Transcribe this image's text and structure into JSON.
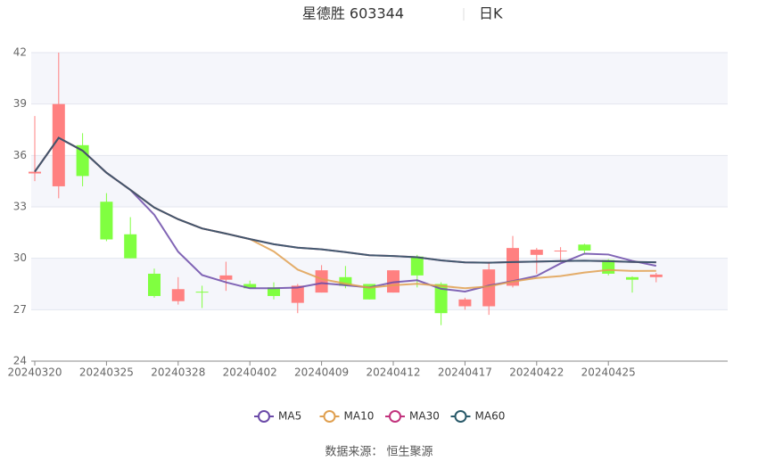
{
  "chart_data": {
    "type": "candlestick",
    "title": "星德胜 603344",
    "subtitle": "日K",
    "source": "数据来源： 恒生聚源",
    "categories": [
      "20240320",
      null,
      null,
      "20240325",
      null,
      null,
      "20240328",
      null,
      null,
      "20240402",
      null,
      null,
      "20240409",
      null,
      null,
      "20240412",
      null,
      null,
      "20240417",
      null,
      null,
      "20240422",
      null,
      null,
      "20240425",
      null,
      null
    ],
    "open": [
      34.95,
      34.2,
      36.6,
      33.3,
      31.4,
      29.1,
      27.5,
      28.05,
      28.75,
      28.5,
      28.3,
      27.4,
      28.0,
      28.9,
      28.5,
      28.0,
      30.1,
      28.5,
      27.2,
      27.2,
      28.4,
      30.2,
      30.4,
      30.8,
      29.9,
      28.9,
      28.9
    ],
    "close": [
      35.05,
      39.0,
      34.8,
      31.1,
      30.0,
      27.8,
      28.2,
      28.0,
      29.0,
      28.25,
      27.8,
      28.4,
      29.3,
      28.4,
      27.6,
      29.3,
      29.0,
      26.8,
      27.6,
      29.35,
      30.6,
      30.5,
      30.45,
      30.45,
      29.1,
      28.75,
      29.05
    ],
    "high": [
      38.3,
      42.0,
      37.3,
      33.8,
      32.4,
      29.4,
      28.9,
      28.4,
      29.8,
      28.7,
      28.6,
      28.5,
      29.6,
      29.55,
      28.5,
      29.3,
      30.2,
      28.6,
      27.7,
      29.8,
      31.3,
      30.6,
      30.65,
      30.85,
      29.95,
      28.95,
      29.15
    ],
    "low": [
      34.5,
      33.5,
      34.2,
      31.0,
      30.0,
      27.7,
      27.3,
      27.1,
      28.1,
      28.25,
      27.6,
      26.8,
      28.0,
      28.25,
      27.6,
      28.0,
      28.3,
      26.1,
      27.0,
      26.7,
      28.3,
      29.1,
      29.8,
      30.3,
      29.0,
      28.0,
      28.6
    ],
    "up_color": "#ff8080",
    "down_color": "#80ff40",
    "series": [
      {
        "name": "MA5",
        "color": "#6b4aa8",
        "values": [
          35.05,
          37.03,
          36.28,
          34.99,
          33.99,
          32.54,
          30.38,
          29.02,
          28.6,
          28.25,
          28.25,
          28.29,
          28.55,
          28.43,
          28.3,
          28.6,
          28.72,
          28.22,
          28.06,
          28.41,
          28.67,
          28.97,
          29.7,
          30.27,
          30.22,
          29.85,
          29.56
        ]
      },
      {
        "name": "MA10",
        "color": "#e0a050",
        "values": [
          35.05,
          37.03,
          36.28,
          34.99,
          33.99,
          32.96,
          32.28,
          31.74,
          31.44,
          31.12,
          30.4,
          29.34,
          28.79,
          28.52,
          28.28,
          28.43,
          28.51,
          28.39,
          28.25,
          28.36,
          28.64,
          28.85,
          28.96,
          29.17,
          29.32,
          29.26,
          29.27
        ]
      },
      {
        "name": "MA30",
        "color": "#c2337d",
        "values": [
          35.05,
          37.03,
          36.28,
          34.99,
          33.99,
          32.96,
          32.28,
          31.74,
          31.44,
          31.12,
          30.82,
          30.62,
          30.52,
          30.36,
          30.18,
          30.13,
          30.06,
          29.88,
          29.76,
          29.74,
          29.78,
          29.81,
          29.84,
          29.86,
          29.83,
          29.79,
          29.77
        ]
      },
      {
        "name": "MA60",
        "color": "#2a5a6a",
        "values": [
          35.05,
          37.03,
          36.28,
          34.99,
          33.99,
          32.96,
          32.28,
          31.74,
          31.44,
          31.12,
          30.82,
          30.62,
          30.52,
          30.36,
          30.18,
          30.13,
          30.06,
          29.88,
          29.76,
          29.74,
          29.78,
          29.81,
          29.84,
          29.86,
          29.83,
          29.79,
          29.77
        ]
      }
    ],
    "ylim": [
      24,
      42
    ],
    "yticks": [
      24,
      27,
      30,
      33,
      36,
      39,
      42
    ],
    "grid": true
  }
}
